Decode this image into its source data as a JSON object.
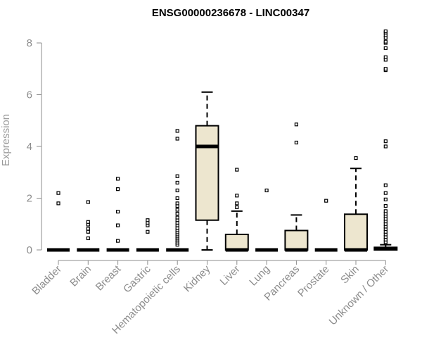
{
  "chart_data": {
    "type": "boxplot",
    "title": "ENSG00000236678 - LINC00347",
    "ylabel": "Expression",
    "xlabel": "",
    "ylim": [
      0,
      8
    ],
    "yticks": [
      0,
      2,
      4,
      6,
      8
    ],
    "box_fill": "#ede6cf",
    "categories": [
      "Bladder",
      "Brain",
      "Breast",
      "Gastric",
      "Hematopoietic cells",
      "Kidney",
      "Liver",
      "Lung",
      "Pancreas",
      "Prostate",
      "Skin",
      "Unknown / Other"
    ],
    "boxes": [
      {
        "q1": 0,
        "median": 0,
        "q3": 0,
        "whisker_low": 0,
        "whisker_high": 0,
        "outliers": [
          1.8,
          2.2
        ]
      },
      {
        "q1": 0,
        "median": 0,
        "q3": 0,
        "whisker_low": 0,
        "whisker_high": 0,
        "outliers": [
          0.45,
          0.7,
          0.82,
          0.98,
          1.08,
          1.85
        ]
      },
      {
        "q1": 0,
        "median": 0,
        "q3": 0,
        "whisker_low": 0,
        "whisker_high": 0,
        "outliers": [
          0.35,
          0.95,
          1.48,
          2.35,
          2.75
        ]
      },
      {
        "q1": 0,
        "median": 0,
        "q3": 0,
        "whisker_low": 0,
        "whisker_high": 0,
        "outliers": [
          0.7,
          0.95,
          1.05,
          1.15
        ]
      },
      {
        "q1": 0,
        "median": 0,
        "q3": 0,
        "whisker_low": 0,
        "whisker_high": 0,
        "outliers": [
          0.2,
          0.28,
          0.36,
          0.44,
          0.52,
          0.6,
          0.68,
          0.76,
          0.85,
          0.95,
          1.05,
          1.15,
          1.25,
          1.4,
          1.55,
          1.7,
          1.8,
          2.0,
          2.3,
          2.6,
          2.85,
          4.3,
          4.6
        ]
      },
      {
        "q1": 1.15,
        "median": 4.0,
        "q3": 4.8,
        "whisker_low": 0,
        "whisker_high": 6.1,
        "outliers": []
      },
      {
        "q1": 0,
        "median": 0,
        "q3": 0.6,
        "whisker_low": 0,
        "whisker_high": 1.5,
        "outliers": [
          1.65,
          1.8,
          2.1,
          3.1
        ]
      },
      {
        "q1": 0,
        "median": 0,
        "q3": 0,
        "whisker_low": 0,
        "whisker_high": 0,
        "outliers": [
          2.3
        ]
      },
      {
        "q1": 0,
        "median": 0,
        "q3": 0.75,
        "whisker_low": 0,
        "whisker_high": 1.35,
        "outliers": [
          4.15,
          4.85
        ]
      },
      {
        "q1": 0,
        "median": 0,
        "q3": 0,
        "whisker_low": 0,
        "whisker_high": 0,
        "outliers": [
          1.9
        ]
      },
      {
        "q1": 0,
        "median": 0,
        "q3": 1.38,
        "whisker_low": 0,
        "whisker_high": 3.15,
        "outliers": [
          3.55
        ]
      },
      {
        "q1": 0,
        "median": 0.05,
        "q3": 0.1,
        "whisker_low": 0,
        "whisker_high": 0.2,
        "outliers": [
          0.3,
          0.4,
          0.5,
          0.6,
          0.7,
          0.8,
          0.9,
          1.0,
          1.1,
          1.2,
          1.3,
          1.4,
          1.5,
          1.7,
          1.95,
          2.2,
          2.5,
          4.0,
          4.2,
          6.95,
          7.0,
          7.35,
          7.45,
          7.8,
          8.0,
          8.05,
          8.2,
          8.3,
          8.4,
          8.45
        ]
      }
    ]
  }
}
